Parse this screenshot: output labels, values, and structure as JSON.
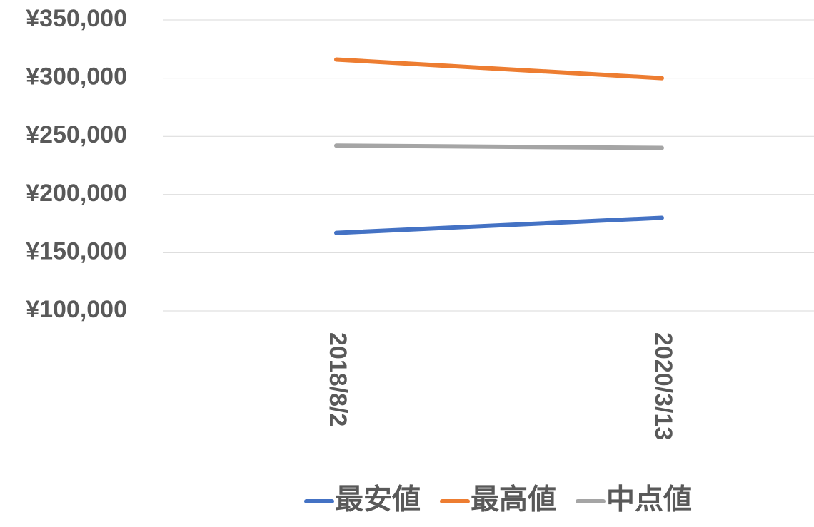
{
  "chart_data": {
    "type": "line",
    "categories": [
      "2018/8/2",
      "2020/3/13"
    ],
    "series": [
      {
        "name": "最安値",
        "color": "#4472c4",
        "values": [
          167000,
          180000
        ]
      },
      {
        "name": "最高値",
        "color": "#ed7d31",
        "values": [
          316000,
          300000
        ]
      },
      {
        "name": "中点値",
        "color": "#a5a5a5",
        "values": [
          242000,
          240000
        ]
      }
    ],
    "ylim": [
      100000,
      350000
    ],
    "yticks": [
      {
        "value": 100000,
        "label": "¥100,000"
      },
      {
        "value": 150000,
        "label": "¥150,000"
      },
      {
        "value": 200000,
        "label": "¥200,000"
      },
      {
        "value": 250000,
        "label": "¥250,000"
      },
      {
        "value": 300000,
        "label": "¥300,000"
      },
      {
        "value": 350000,
        "label": "¥350,000"
      }
    ],
    "grid": true,
    "legend": "bottom"
  }
}
